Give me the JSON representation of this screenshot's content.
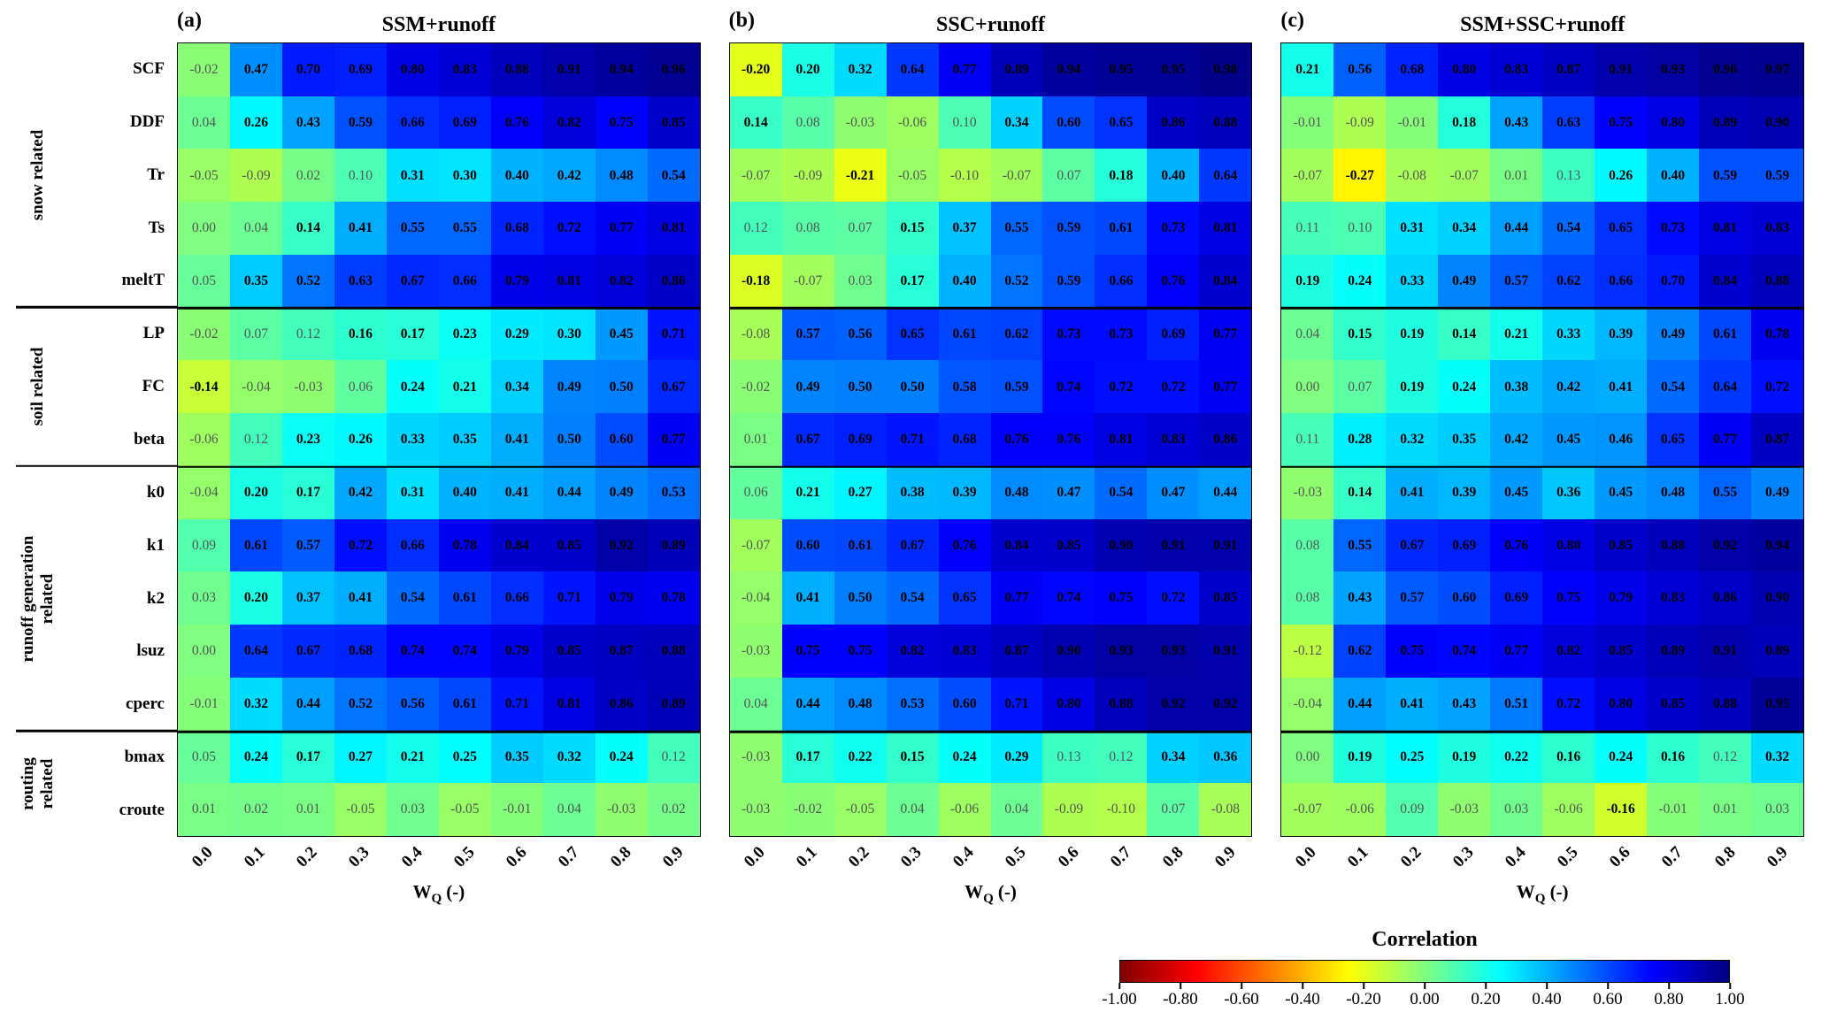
{
  "chart_data": {
    "type": "heatmap",
    "colormap": "jet-reversed",
    "color_range": [
      -1,
      1
    ],
    "bold_threshold": 0.14,
    "x_ticks": [
      "0.0",
      "0.1",
      "0.2",
      "0.3",
      "0.4",
      "0.5",
      "0.6",
      "0.7",
      "0.8",
      "0.9"
    ],
    "x_label": {
      "base": "W",
      "sub": "Q",
      "rest": "(-)"
    },
    "row_labels": [
      "SCF",
      "DDF",
      "Tr",
      "Ts",
      "meltT",
      "LP",
      "FC",
      "beta",
      "k0",
      "k1",
      "k2",
      "lsuz",
      "cperc",
      "bmax",
      "croute"
    ],
    "row_groups": [
      {
        "label": "snow related",
        "rows": 5
      },
      {
        "label": "soil related",
        "rows": 3
      },
      {
        "label": "runoff generation\nrelated",
        "rows": 5
      },
      {
        "label": "routing\nrelated",
        "rows": 2
      }
    ],
    "panels": [
      {
        "tag": "(a)",
        "title": "SSM+runoff",
        "values": [
          [
            -0.02,
            0.47,
            0.7,
            0.69,
            0.8,
            0.83,
            0.88,
            0.91,
            0.94,
            0.96
          ],
          [
            0.04,
            0.26,
            0.43,
            0.59,
            0.66,
            0.69,
            0.76,
            0.82,
            0.75,
            0.85
          ],
          [
            -0.05,
            -0.09,
            0.02,
            0.1,
            0.31,
            0.3,
            0.4,
            0.42,
            0.48,
            0.54
          ],
          [
            0.0,
            0.04,
            0.14,
            0.41,
            0.55,
            0.55,
            0.68,
            0.72,
            0.77,
            0.81
          ],
          [
            0.05,
            0.35,
            0.52,
            0.63,
            0.67,
            0.66,
            0.79,
            0.81,
            0.82,
            0.86
          ],
          [
            -0.02,
            0.07,
            0.12,
            0.16,
            0.17,
            0.23,
            0.29,
            0.3,
            0.45,
            0.71
          ],
          [
            -0.14,
            -0.04,
            -0.03,
            0.06,
            0.24,
            0.21,
            0.34,
            0.49,
            0.5,
            0.67
          ],
          [
            -0.06,
            0.12,
            0.23,
            0.26,
            0.33,
            0.35,
            0.41,
            0.5,
            0.6,
            0.77
          ],
          [
            -0.04,
            0.2,
            0.17,
            0.42,
            0.31,
            0.4,
            0.41,
            0.44,
            0.49,
            0.53
          ],
          [
            0.09,
            0.61,
            0.57,
            0.72,
            0.66,
            0.78,
            0.84,
            0.85,
            0.92,
            0.89
          ],
          [
            0.03,
            0.2,
            0.37,
            0.41,
            0.54,
            0.61,
            0.66,
            0.71,
            0.79,
            0.78
          ],
          [
            0.0,
            0.64,
            0.67,
            0.68,
            0.74,
            0.74,
            0.79,
            0.85,
            0.87,
            0.88
          ],
          [
            -0.01,
            0.32,
            0.44,
            0.52,
            0.56,
            0.61,
            0.71,
            0.81,
            0.86,
            0.89
          ],
          [
            0.05,
            0.24,
            0.17,
            0.27,
            0.21,
            0.25,
            0.35,
            0.32,
            0.24,
            0.12
          ],
          [
            0.01,
            0.02,
            0.01,
            -0.05,
            0.03,
            -0.05,
            -0.01,
            0.04,
            -0.03,
            0.02
          ]
        ]
      },
      {
        "tag": "(b)",
        "title": "SSC+runoff",
        "values": [
          [
            -0.2,
            0.2,
            0.32,
            0.64,
            0.77,
            0.89,
            0.94,
            0.95,
            0.95,
            0.98
          ],
          [
            0.14,
            0.08,
            -0.03,
            -0.06,
            0.1,
            0.34,
            0.6,
            0.65,
            0.86,
            0.88
          ],
          [
            -0.07,
            -0.09,
            -0.21,
            -0.05,
            -0.1,
            -0.07,
            0.07,
            0.18,
            0.4,
            0.64
          ],
          [
            0.12,
            0.08,
            0.07,
            0.15,
            0.37,
            0.55,
            0.59,
            0.61,
            0.73,
            0.81
          ],
          [
            -0.18,
            -0.07,
            0.03,
            0.17,
            0.4,
            0.52,
            0.59,
            0.66,
            0.76,
            0.84
          ],
          [
            -0.08,
            0.57,
            0.56,
            0.65,
            0.61,
            0.62,
            0.73,
            0.73,
            0.69,
            0.77
          ],
          [
            -0.02,
            0.49,
            0.5,
            0.5,
            0.58,
            0.59,
            0.74,
            0.72,
            0.72,
            0.77
          ],
          [
            0.01,
            0.67,
            0.69,
            0.71,
            0.68,
            0.76,
            0.76,
            0.81,
            0.83,
            0.86
          ],
          [
            0.06,
            0.21,
            0.27,
            0.38,
            0.39,
            0.48,
            0.47,
            0.54,
            0.47,
            0.44
          ],
          [
            -0.07,
            0.6,
            0.61,
            0.67,
            0.76,
            0.84,
            0.85,
            0.9,
            0.91,
            0.91
          ],
          [
            -0.04,
            0.41,
            0.5,
            0.54,
            0.65,
            0.77,
            0.74,
            0.75,
            0.72,
            0.85
          ],
          [
            -0.03,
            0.75,
            0.75,
            0.82,
            0.83,
            0.87,
            0.9,
            0.93,
            0.93,
            0.91
          ],
          [
            0.04,
            0.44,
            0.48,
            0.53,
            0.6,
            0.71,
            0.8,
            0.88,
            0.92,
            0.92
          ],
          [
            -0.03,
            0.17,
            0.22,
            0.15,
            0.24,
            0.29,
            0.13,
            0.12,
            0.34,
            0.36
          ],
          [
            -0.03,
            -0.02,
            -0.05,
            0.04,
            -0.06,
            0.04,
            -0.09,
            -0.1,
            0.07,
            -0.08
          ]
        ]
      },
      {
        "tag": "(c)",
        "title": "SSM+SSC+runoff",
        "values": [
          [
            0.21,
            0.56,
            0.68,
            0.8,
            0.83,
            0.87,
            0.91,
            0.93,
            0.96,
            0.97
          ],
          [
            -0.01,
            -0.09,
            -0.01,
            0.18,
            0.43,
            0.63,
            0.75,
            0.8,
            0.89,
            0.9
          ],
          [
            -0.07,
            -0.27,
            -0.08,
            -0.07,
            0.01,
            0.13,
            0.26,
            0.4,
            0.59,
            0.59
          ],
          [
            0.11,
            0.1,
            0.31,
            0.34,
            0.44,
            0.54,
            0.65,
            0.73,
            0.81,
            0.83
          ],
          [
            0.19,
            0.24,
            0.33,
            0.49,
            0.57,
            0.62,
            0.66,
            0.7,
            0.84,
            0.88
          ],
          [
            0.04,
            0.15,
            0.19,
            0.14,
            0.21,
            0.33,
            0.39,
            0.49,
            0.61,
            0.78
          ],
          [
            0.0,
            0.07,
            0.19,
            0.24,
            0.38,
            0.42,
            0.41,
            0.54,
            0.64,
            0.72
          ],
          [
            0.11,
            0.28,
            0.32,
            0.35,
            0.42,
            0.45,
            0.46,
            0.65,
            0.77,
            0.87
          ],
          [
            -0.03,
            0.14,
            0.41,
            0.39,
            0.45,
            0.36,
            0.45,
            0.48,
            0.55,
            0.49
          ],
          [
            0.08,
            0.55,
            0.67,
            0.69,
            0.76,
            0.8,
            0.85,
            0.88,
            0.92,
            0.94
          ],
          [
            0.08,
            0.43,
            0.57,
            0.6,
            0.69,
            0.75,
            0.79,
            0.83,
            0.86,
            0.9
          ],
          [
            -0.12,
            0.62,
            0.75,
            0.74,
            0.77,
            0.82,
            0.85,
            0.89,
            0.91,
            0.89
          ],
          [
            -0.04,
            0.44,
            0.41,
            0.43,
            0.51,
            0.72,
            0.8,
            0.85,
            0.88,
            0.95
          ],
          [
            0.0,
            0.19,
            0.25,
            0.19,
            0.22,
            0.16,
            0.24,
            0.16,
            0.12,
            0.32
          ],
          [
            -0.07,
            -0.06,
            0.09,
            -0.03,
            0.03,
            -0.06,
            -0.16,
            -0.01,
            0.01,
            0.03
          ]
        ]
      }
    ],
    "colorbar": {
      "title": "Correlation",
      "tick_labels": [
        "-1.00",
        "-0.80",
        "-0.60",
        "-0.40",
        "-0.20",
        "0.00",
        "0.20",
        "0.40",
        "0.60",
        "0.80",
        "1.00"
      ]
    }
  }
}
